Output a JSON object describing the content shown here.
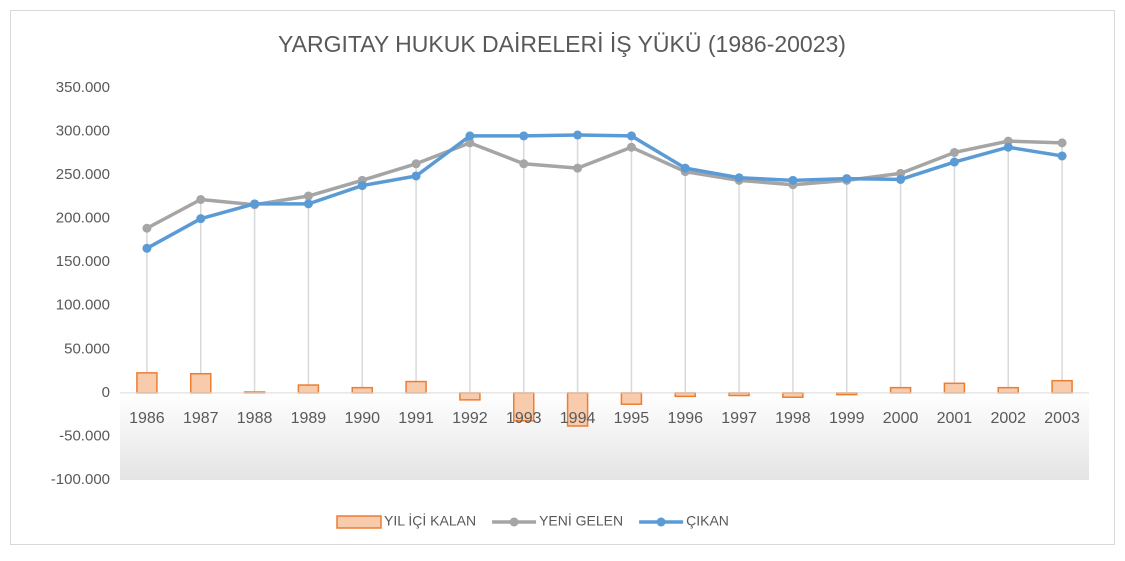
{
  "chart_data": {
    "type": "combo",
    "title": "YARGITAY HUKUK DAİRELERİ İŞ YÜKÜ (1986-20023)",
    "categories": [
      "1986",
      "1987",
      "1988",
      "1989",
      "1990",
      "1991",
      "1992",
      "1993",
      "1994",
      "1995",
      "1996",
      "1997",
      "1998",
      "1999",
      "2000",
      "2001",
      "2002",
      "2003"
    ],
    "series": [
      {
        "name": "YIL İÇİ KALAN",
        "type": "bar",
        "color": "#ed7d31",
        "values": [
          23000,
          22000,
          1000,
          9000,
          6000,
          13000,
          -8000,
          -32000,
          -38000,
          -13000,
          -4000,
          -3000,
          -5000,
          -2000,
          6000,
          11000,
          6000,
          14000
        ]
      },
      {
        "name": "YENİ GELEN",
        "type": "line",
        "color": "#a5a5a5",
        "values": [
          189000,
          222000,
          216000,
          226000,
          244000,
          263000,
          287000,
          263000,
          258000,
          282000,
          254000,
          244000,
          239000,
          244000,
          252000,
          276000,
          289000,
          287000
        ]
      },
      {
        "name": "ÇIKAN",
        "type": "line",
        "color": "#5b9bd5",
        "values": [
          166000,
          200000,
          217000,
          217000,
          238000,
          249000,
          295000,
          295000,
          296000,
          295000,
          258000,
          247000,
          244000,
          246000,
          245000,
          265000,
          282000,
          272000
        ]
      }
    ],
    "ylim": [
      -100000,
      350000
    ],
    "yticks": [
      {
        "value": -100000,
        "label": "-100.000"
      },
      {
        "value": -50000,
        "label": "-50.000"
      },
      0,
      {
        "value": 50000,
        "label": "50.000"
      },
      {
        "value": 100000,
        "label": "100.000"
      },
      {
        "value": 150000,
        "label": "150.000"
      },
      {
        "value": 200000,
        "label": "200.000"
      },
      {
        "value": 250000,
        "label": "250.000"
      },
      {
        "value": 300000,
        "label": "300.000"
      },
      {
        "value": 350000,
        "label": "350.000"
      }
    ],
    "grid": false,
    "legend": "bottom"
  }
}
